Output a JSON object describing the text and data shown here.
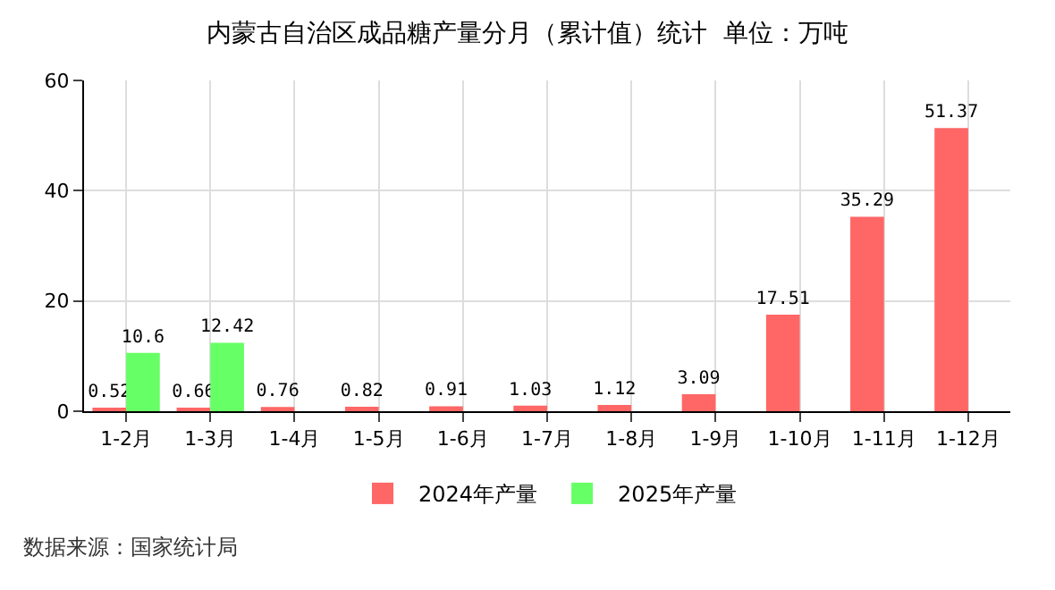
{
  "chart_data": {
    "type": "bar",
    "title": "内蒙古自治区成品糖产量分月（累计值）统计  单位：万吨",
    "categories": [
      "1-2月",
      "1-3月",
      "1-4月",
      "1-5月",
      "1-6月",
      "1-7月",
      "1-8月",
      "1-9月",
      "1-10月",
      "1-11月",
      "1-12月"
    ],
    "series": [
      {
        "name": "2024年产量",
        "color": "#ff6666",
        "values": [
          0.52,
          0.66,
          0.76,
          0.82,
          0.91,
          1.03,
          1.12,
          3.09,
          17.51,
          35.29,
          51.37
        ]
      },
      {
        "name": "2025年产量",
        "color": "#66ff66",
        "values": [
          10.6,
          12.42,
          null,
          null,
          null,
          null,
          null,
          null,
          null,
          null,
          null
        ]
      }
    ],
    "ylim": [
      0,
      60
    ],
    "yticks": [
      0,
      20,
      40,
      60
    ],
    "grid": true,
    "legend": "bottom",
    "data_labels": true,
    "annotations": [
      "数据来源：国家统计局"
    ]
  }
}
